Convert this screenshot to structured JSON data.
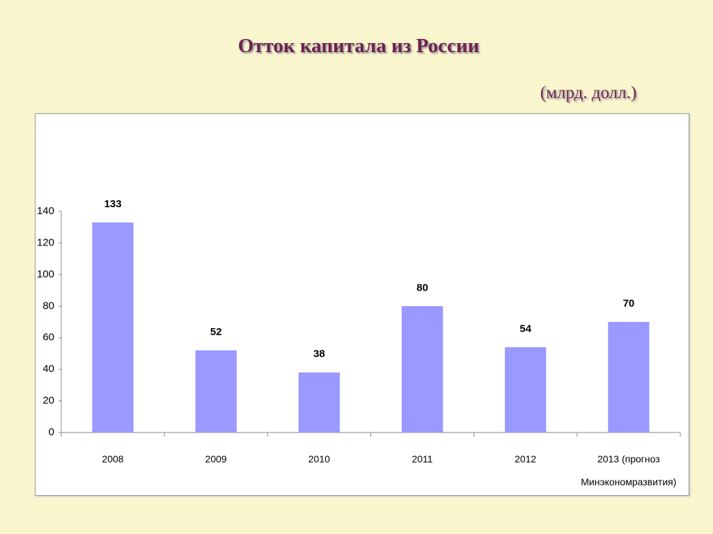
{
  "chart_data": {
    "type": "bar",
    "title": "Отток капитала из России",
    "subtitle": "(млрд. долл.)",
    "categories": [
      "2008",
      "2009",
      "2010",
      "2011",
      "2012",
      "2013 (прогноз Минэкономразвития)"
    ],
    "values": [
      133,
      52,
      38,
      80,
      54,
      70
    ],
    "color": "#9999ff",
    "ylim": [
      0,
      140
    ],
    "yticks": [
      0,
      20,
      40,
      60,
      80,
      100,
      120,
      140
    ],
    "grid": false
  }
}
